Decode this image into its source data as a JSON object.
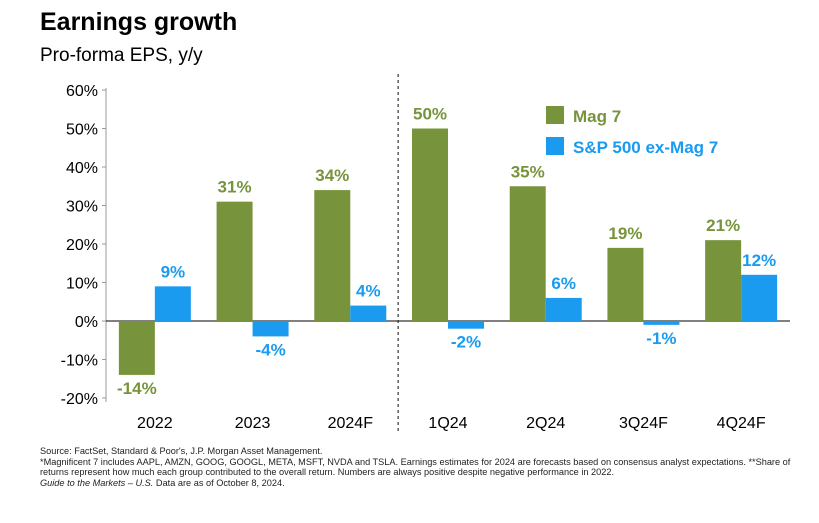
{
  "title": "Earnings growth",
  "subtitle": "Pro-forma EPS, y/y",
  "chart_data": {
    "type": "bar",
    "categories": [
      "2022",
      "2023",
      "2024F",
      "1Q24",
      "2Q24",
      "3Q24F",
      "4Q24F"
    ],
    "series": [
      {
        "name": "Mag 7",
        "values": [
          -14,
          31,
          34,
          50,
          35,
          19,
          21
        ],
        "labels": [
          "-14%",
          "31%",
          "34%",
          "50%",
          "35%",
          "19%",
          "21%"
        ],
        "color": "#77943C"
      },
      {
        "name": "S&P 500 ex-Mag 7",
        "values": [
          9,
          -4,
          4,
          -2,
          6,
          -1,
          12
        ],
        "labels": [
          "9%",
          "-4%",
          "4%",
          "-2%",
          "6%",
          "-1%",
          "12%"
        ],
        "color": "#1A9BF0"
      }
    ],
    "yticks": [
      "60%",
      "50%",
      "40%",
      "30%",
      "20%",
      "10%",
      "0%",
      "-10%",
      "-20%"
    ],
    "ylim": [
      -20,
      60
    ],
    "divider_after_category": "2024F",
    "legend_position": "top-right",
    "grid": false
  },
  "footnotes": {
    "source": "Source: FactSet, Standard & Poor's, J.P. Morgan Asset Management.",
    "note1": "*Magnificent 7 includes AAPL, AMZN, GOOG, GOOGL, META, MSFT, NVDA and TSLA. Earnings estimates for 2024 are forecasts based on consensus analyst expectations. **Share of returns represent how much each group contributed to the overall return. Numbers are always positive despite negative performance in 2022.",
    "guide": "Guide to the Markets – U.S.",
    "date": " Data are as of October 8, 2024."
  }
}
